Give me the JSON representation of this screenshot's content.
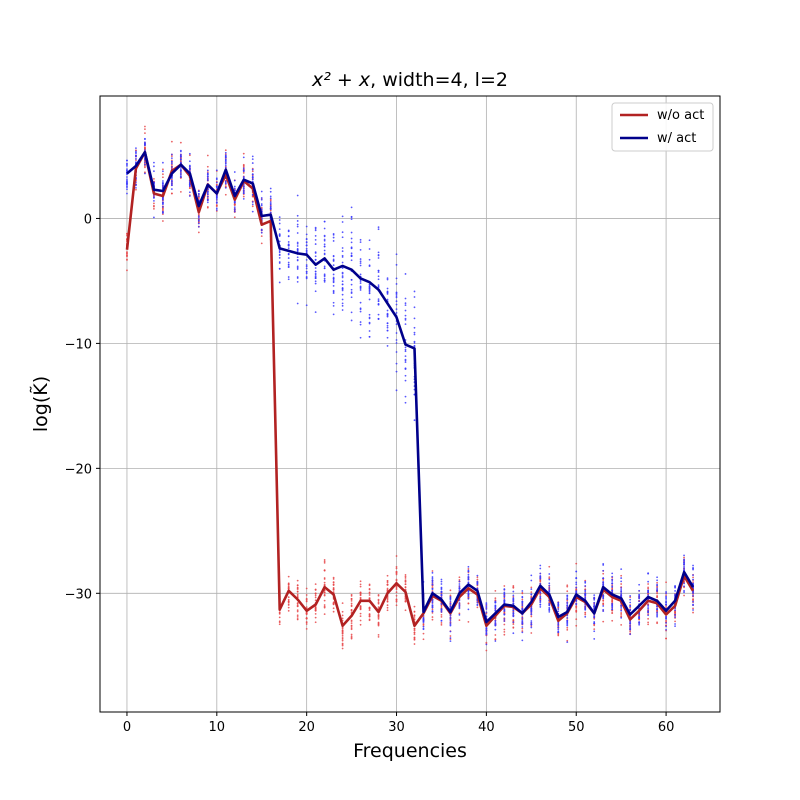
{
  "chart_data": {
    "type": "line",
    "title_math": "x² + x",
    "title_rest": ", width=4, l=2",
    "xlabel": "Frequencies",
    "ylabel": "log(K̃)",
    "xlim": [
      -3,
      66
    ],
    "ylim": [
      -39.5,
      9.8
    ],
    "xticks": [
      0,
      10,
      20,
      30,
      40,
      50,
      60
    ],
    "yticks": [
      0,
      -10,
      -20,
      -30
    ],
    "ytick_labels": [
      "0",
      "−10",
      "−20",
      "−30"
    ],
    "grid": true,
    "legend_position": "top-right",
    "colors": {
      "wo_act": "#b22222",
      "w_act": "#00008b",
      "wo_act_scatter": "#e8484a",
      "w_act_scatter": "#3a3aff"
    },
    "series": [
      {
        "name": "w/o act",
        "color": "#b22222",
        "x": [
          0,
          1,
          2,
          3,
          4,
          5,
          6,
          7,
          8,
          9,
          10,
          11,
          12,
          13,
          14,
          15,
          16,
          17,
          18,
          19,
          20,
          21,
          22,
          23,
          24,
          25,
          26,
          27,
          28,
          29,
          30,
          31,
          32,
          33,
          34,
          35,
          36,
          37,
          38,
          39,
          40,
          41,
          42,
          43,
          44,
          45,
          46,
          47,
          48,
          49,
          50,
          51,
          52,
          53,
          54,
          55,
          56,
          57,
          58,
          59,
          60,
          61,
          62,
          63
        ],
        "values": [
          -2.5,
          4.0,
          5.3,
          2.0,
          1.8,
          3.8,
          4.3,
          3.4,
          0.5,
          2.7,
          2.0,
          3.5,
          1.5,
          3.0,
          2.4,
          -0.5,
          -0.2,
          -31.3,
          -29.8,
          -30.5,
          -31.4,
          -30.9,
          -29.5,
          -30.1,
          -32.6,
          -31.8,
          -30.6,
          -30.6,
          -31.5,
          -30.0,
          -29.2,
          -29.9,
          -32.6,
          -31.6,
          -30.2,
          -30.6,
          -31.6,
          -30.3,
          -29.6,
          -30.1,
          -32.6,
          -31.8,
          -31.0,
          -31.1,
          -31.6,
          -30.9,
          -29.6,
          -30.3,
          -32.2,
          -31.6,
          -30.3,
          -30.7,
          -31.6,
          -29.7,
          -30.3,
          -30.6,
          -32.1,
          -31.4,
          -30.6,
          -30.8,
          -31.7,
          -31.0,
          -28.6,
          -29.8
        ]
      },
      {
        "name": "w/ act",
        "color": "#00008b",
        "x": [
          0,
          1,
          2,
          3,
          4,
          5,
          6,
          7,
          8,
          9,
          10,
          11,
          12,
          13,
          14,
          15,
          16,
          17,
          18,
          19,
          20,
          21,
          22,
          23,
          24,
          25,
          26,
          27,
          28,
          29,
          30,
          31,
          32,
          33,
          34,
          35,
          36,
          37,
          38,
          39,
          40,
          41,
          42,
          43,
          44,
          45,
          46,
          47,
          48,
          49,
          50,
          51,
          52,
          53,
          54,
          55,
          56,
          57,
          58,
          59,
          60,
          61,
          62,
          63
        ],
        "values": [
          3.6,
          4.2,
          5.3,
          2.3,
          2.2,
          3.6,
          4.3,
          3.6,
          1.0,
          2.7,
          2.0,
          3.9,
          1.8,
          3.1,
          2.8,
          0.2,
          0.3,
          -2.4,
          -2.6,
          -2.8,
          -2.9,
          -3.7,
          -3.2,
          -4.1,
          -3.8,
          -4.1,
          -4.8,
          -5.1,
          -5.7,
          -6.8,
          -7.9,
          -10.1,
          -10.4,
          -31.5,
          -30.0,
          -30.5,
          -31.5,
          -30.0,
          -29.3,
          -29.8,
          -32.3,
          -31.6,
          -30.9,
          -31.0,
          -31.6,
          -30.7,
          -29.4,
          -30.1,
          -31.9,
          -31.5,
          -30.1,
          -30.6,
          -31.6,
          -29.5,
          -30.1,
          -30.4,
          -31.7,
          -31.0,
          -30.3,
          -30.6,
          -31.4,
          -30.6,
          -28.3,
          -29.5
        ]
      }
    ]
  }
}
